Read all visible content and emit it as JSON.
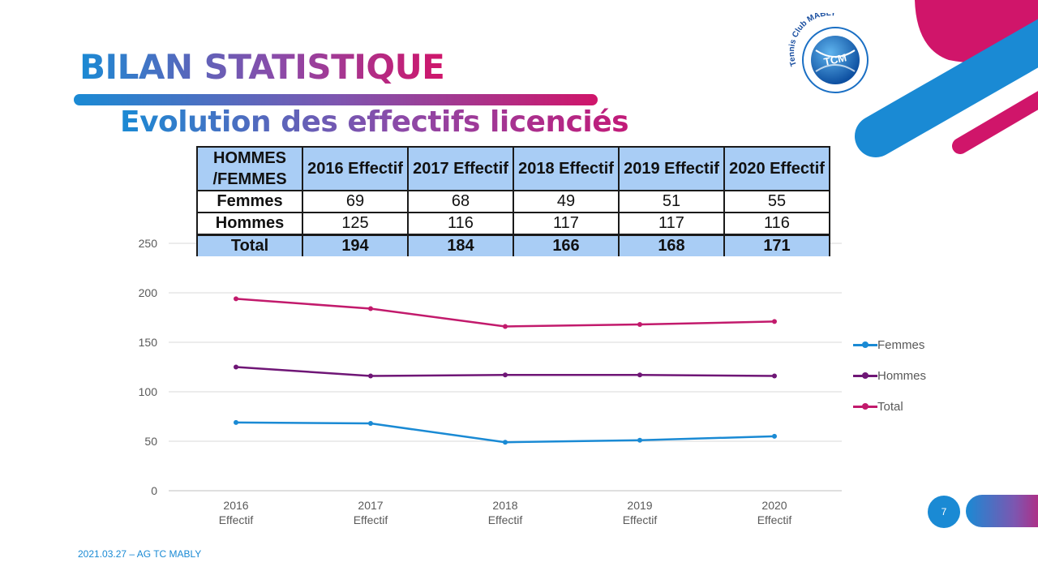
{
  "slide": {
    "title": "BILAN STATISTIQUE",
    "subtitle": "Evolution des effectifs licenciés",
    "footer": "2021.03.27  – AG TC  MABLY",
    "page_number": "7"
  },
  "logo": {
    "ring_text": "Tennis Club MABLY",
    "ball_text": "TCM"
  },
  "colors": {
    "blue": "#1a8ad4",
    "magenta": "#d0156a",
    "purple": "#7d56b0",
    "table_header_bg": "#a9cdf5"
  },
  "table": {
    "header_label": "HOMMES /FEMMES",
    "columns": [
      "2016 Effectif",
      "2017 Effectif",
      "2018 Effectif",
      "2019 Effectif",
      "2020 Effectif"
    ],
    "rows": [
      {
        "label": "Femmes",
        "values": [
          "69",
          "68",
          "49",
          "51",
          "55"
        ]
      },
      {
        "label": "Hommes",
        "values": [
          "125",
          "116",
          "117",
          "117",
          "116"
        ]
      },
      {
        "label": "Total",
        "values": [
          "194",
          "184",
          "166",
          "168",
          "171"
        ]
      }
    ]
  },
  "chart_data": {
    "type": "line",
    "categories": [
      "2016 Effectif",
      "2017 Effectif",
      "2018 Effectif",
      "2019 Effectif",
      "2020 Effectif"
    ],
    "series": [
      {
        "name": "Femmes",
        "values": [
          69,
          68,
          49,
          51,
          55
        ],
        "color": "#1a8ad4"
      },
      {
        "name": "Hommes",
        "values": [
          125,
          116,
          117,
          117,
          116
        ],
        "color": "#6f1676"
      },
      {
        "name": "Total",
        "values": [
          194,
          184,
          166,
          168,
          171
        ],
        "color": "#c21a6c"
      }
    ],
    "yticks": [
      0,
      50,
      100,
      150,
      200,
      250
    ],
    "ylim": [
      0,
      250
    ],
    "grid": true,
    "legend": "right"
  }
}
